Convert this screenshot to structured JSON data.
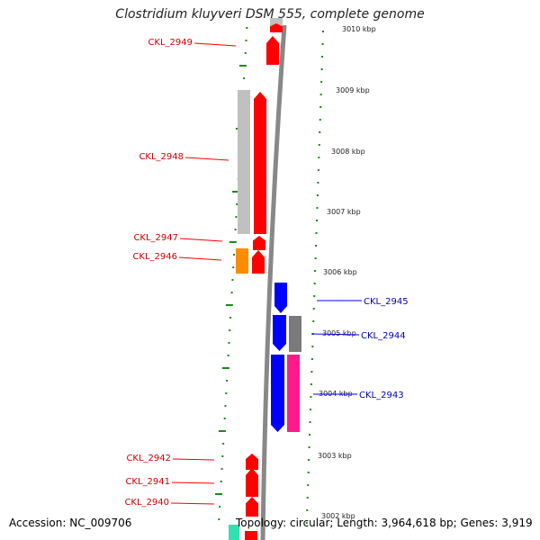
{
  "title": "Clostridium kluyveri DSM 555, complete genome",
  "footer": {
    "accession": "Accession: NC_009706",
    "summary": "Topology: circular; Length: 3,964,618 bp; Genes: 3,919"
  },
  "scale_labels": [
    "3010 kbp",
    "3009 kbp",
    "3008 kbp",
    "3007 kbp",
    "3006 kbp",
    "3005 kbp",
    "3004 kbp",
    "3003 kbp",
    "3002 kbp"
  ],
  "genes": [
    {
      "name": "CKL_2949",
      "strand": "left",
      "color": "#ff0000"
    },
    {
      "name": "CKL_2948",
      "strand": "left",
      "color": "#ff0000"
    },
    {
      "name": "CKL_2947",
      "strand": "left",
      "color": "#ff0000"
    },
    {
      "name": "CKL_2946",
      "strand": "left",
      "color": "#ff0000"
    },
    {
      "name": "CKL_2945",
      "strand": "right",
      "color": "#0000ff"
    },
    {
      "name": "CKL_2944",
      "strand": "right",
      "color": "#0000ff"
    },
    {
      "name": "CKL_2943",
      "strand": "right",
      "color": "#0000ff"
    },
    {
      "name": "CKL_2942",
      "strand": "left",
      "color": "#ff0000"
    },
    {
      "name": "CKL_2941",
      "strand": "left",
      "color": "#ff0000"
    },
    {
      "name": "CKL_2940",
      "strand": "left",
      "color": "#ff0000"
    }
  ],
  "colors": {
    "forward_gene": "#ff0000",
    "reverse_gene": "#0000ff",
    "backbone": "#888888",
    "tick": "#1a8a1a",
    "feature_gray_light": "#c0c0c0",
    "feature_gray_dark": "#7a7a7a",
    "feature_orange": "#ff8c00",
    "feature_pink": "#ff1a8c",
    "feature_teal": "#33e0b0"
  }
}
